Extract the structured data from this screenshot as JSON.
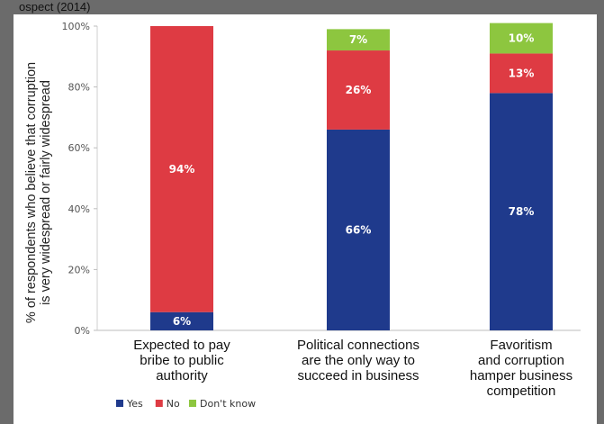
{
  "page_caption": "ospect (2014)",
  "chart_data": {
    "type": "bar",
    "stacked": true,
    "ylabel_lines": [
      "% of respondents who believe that corruption",
      "is very widespread or fairly widespread"
    ],
    "categories": [
      [
        "Expected to pay",
        "bribe to public",
        "authority"
      ],
      [
        "Political connections",
        "are the only way to",
        "succeed in business"
      ],
      [
        "Favoritism",
        "and corruption",
        "hamper business",
        "competition"
      ]
    ],
    "ylim": [
      0,
      100
    ],
    "yticks": [
      "0%",
      "20%",
      "40%",
      "60%",
      "80%",
      "100%"
    ],
    "grid": false,
    "legend_position": "bottom-left",
    "series": [
      {
        "name": "Yes",
        "color": "#1f3a8c",
        "values": [
          6,
          66,
          78
        ],
        "labels": [
          "6%",
          "66%",
          "78%"
        ]
      },
      {
        "name": "No",
        "color": "#de3b43",
        "values": [
          94,
          26,
          13
        ],
        "labels": [
          "94%",
          "26%",
          "13%"
        ]
      },
      {
        "name": "Don't know",
        "color": "#8dc63f",
        "values": [
          0,
          7,
          10
        ],
        "labels": [
          "",
          "7%",
          "10%"
        ]
      }
    ]
  }
}
